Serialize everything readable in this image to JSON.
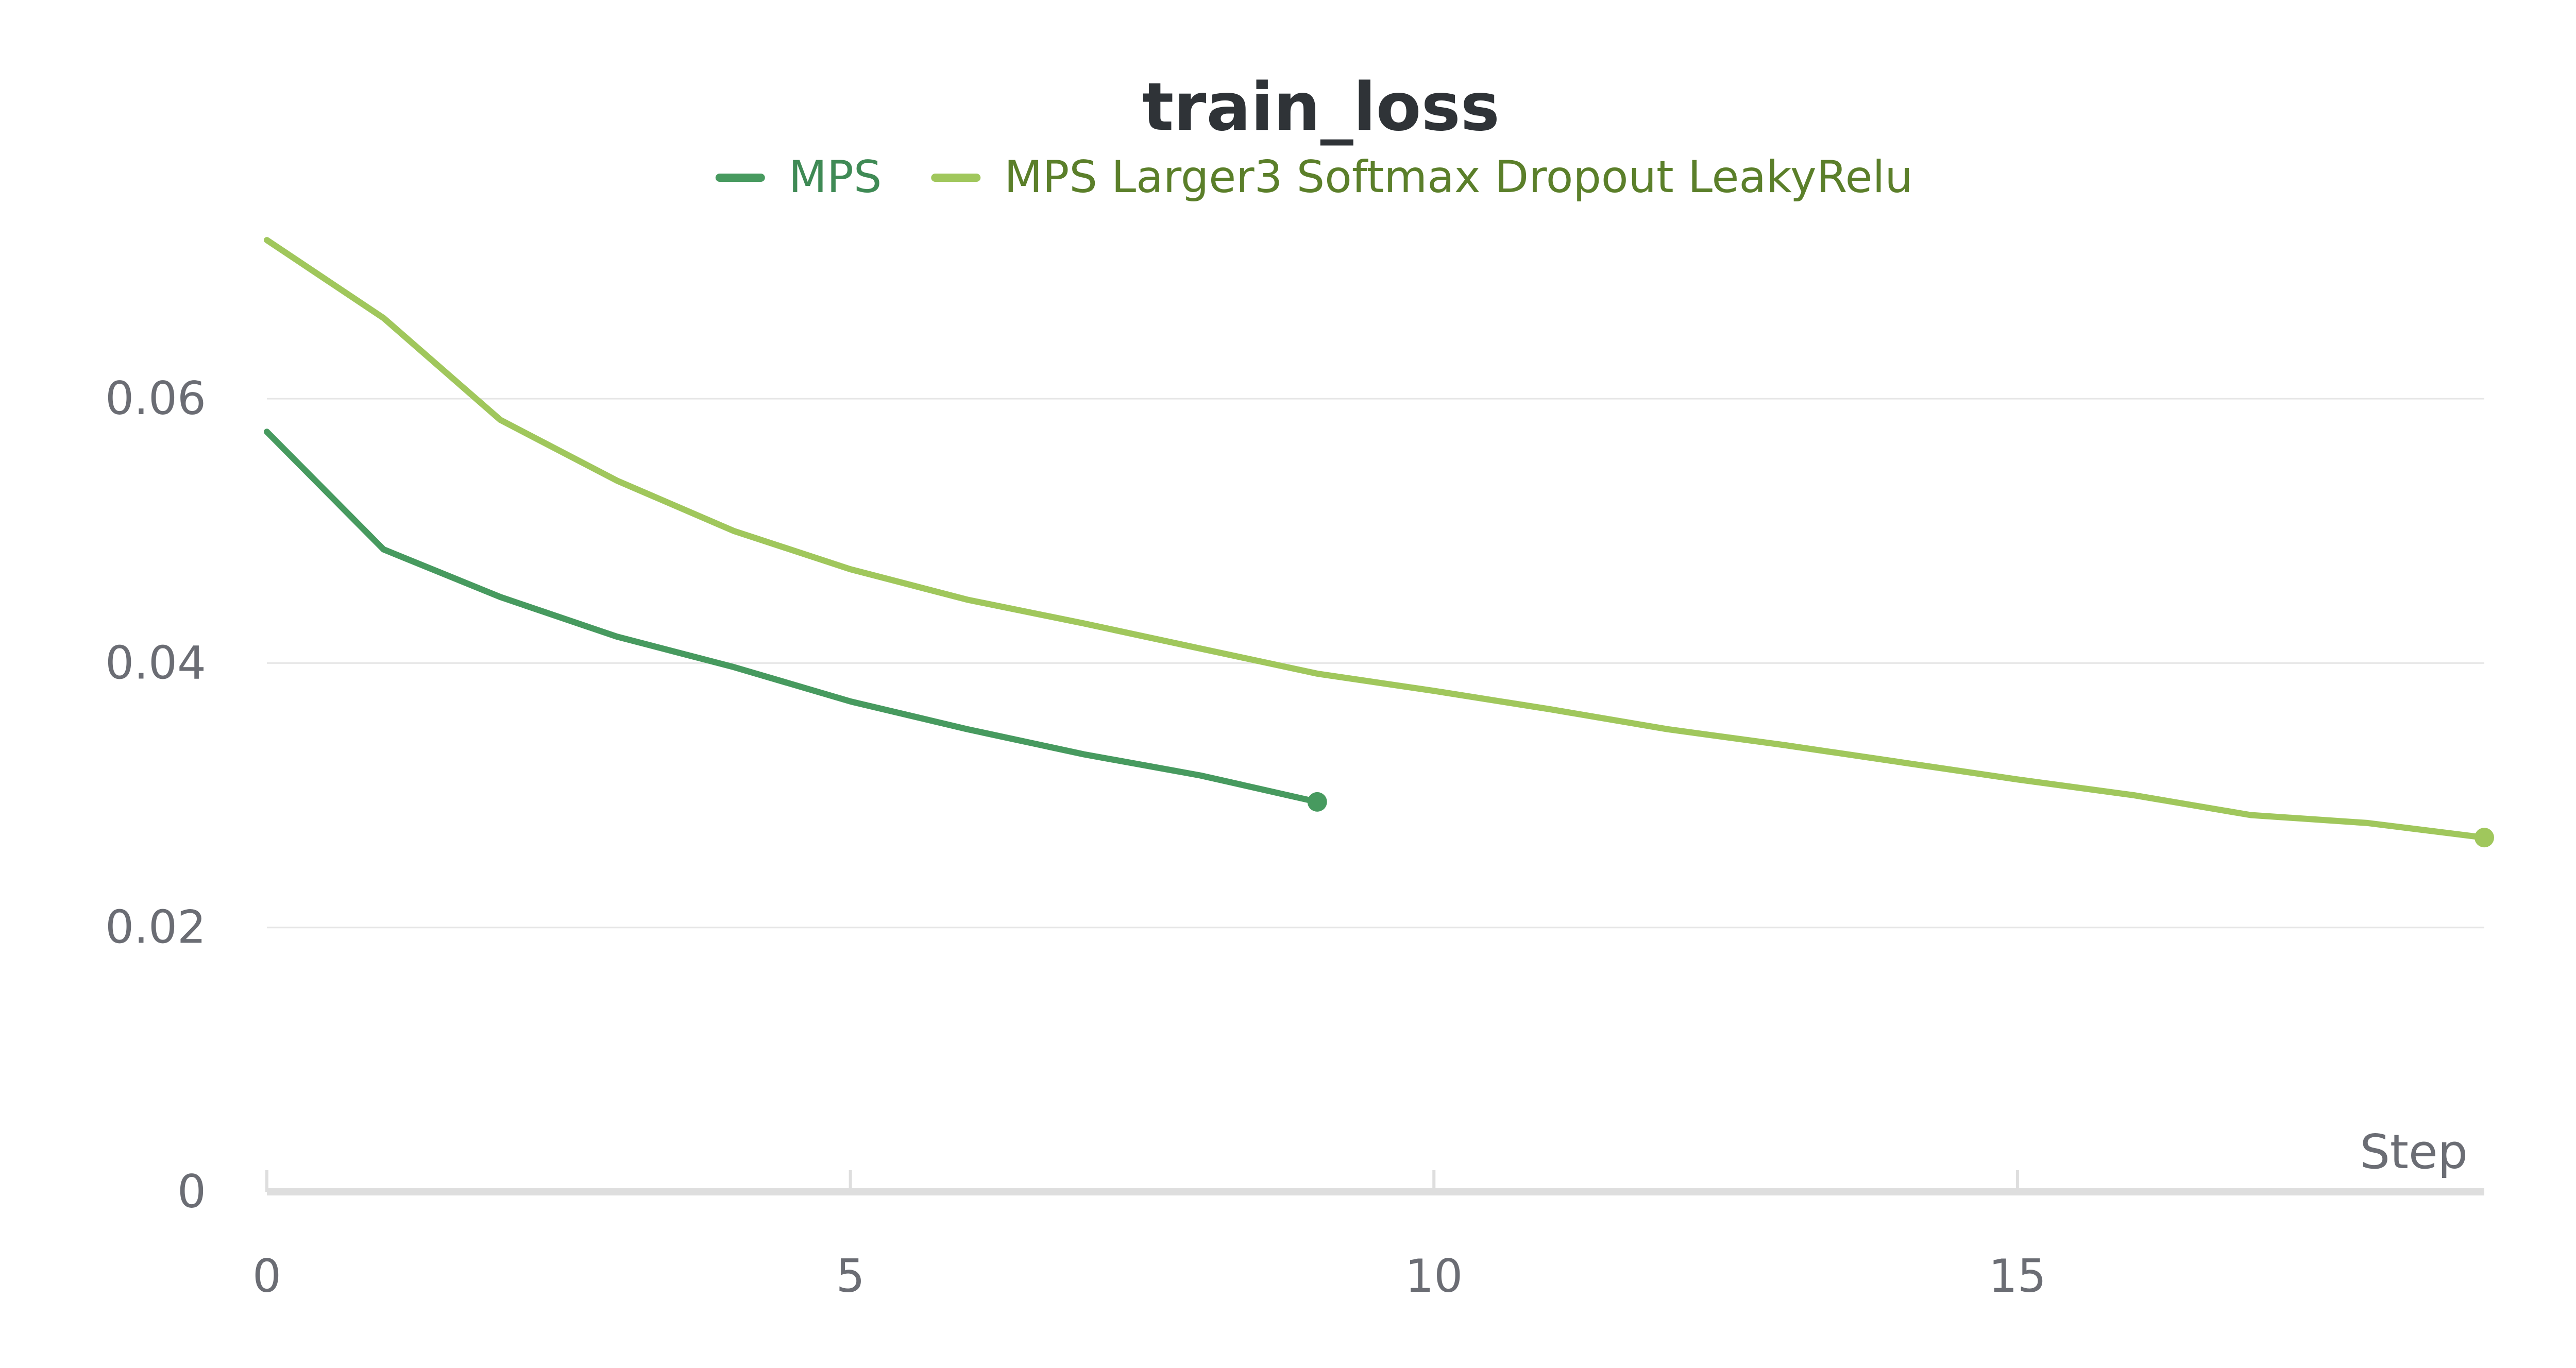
{
  "chart_data": {
    "type": "line",
    "title": "train_loss",
    "xlabel": "Step",
    "ylabel": "",
    "xlim": [
      0,
      19
    ],
    "ylim": [
      0,
      0.072
    ],
    "x_ticks": [
      "0",
      "5",
      "10",
      "15"
    ],
    "y_ticks": [
      "0",
      "0.02",
      "0.04",
      "0.06"
    ],
    "grid": "horizontal",
    "legend_position": "top-center",
    "series": [
      {
        "name": "MPS",
        "color": "#479a5f",
        "x": [
          0,
          1,
          2,
          3,
          4,
          5,
          6,
          7,
          8,
          9
        ],
        "y": [
          0.0575,
          0.0486,
          0.045,
          0.042,
          0.0397,
          0.0371,
          0.035,
          0.0331,
          0.0315,
          0.0295
        ]
      },
      {
        "name": "MPS Larger3 Softmax Dropout LeakyRelu",
        "color": "#a0c75c",
        "x": [
          0,
          1,
          2,
          3,
          4,
          5,
          6,
          7,
          8,
          9,
          10,
          11,
          12,
          13,
          14,
          15,
          16,
          17,
          18,
          19
        ],
        "y": [
          0.072,
          0.0661,
          0.0584,
          0.0538,
          0.05,
          0.0471,
          0.0448,
          0.043,
          0.0411,
          0.0392,
          0.0379,
          0.0365,
          0.035,
          0.0338,
          0.0325,
          0.0312,
          0.03,
          0.0285,
          0.0279,
          0.0268
        ]
      }
    ]
  }
}
